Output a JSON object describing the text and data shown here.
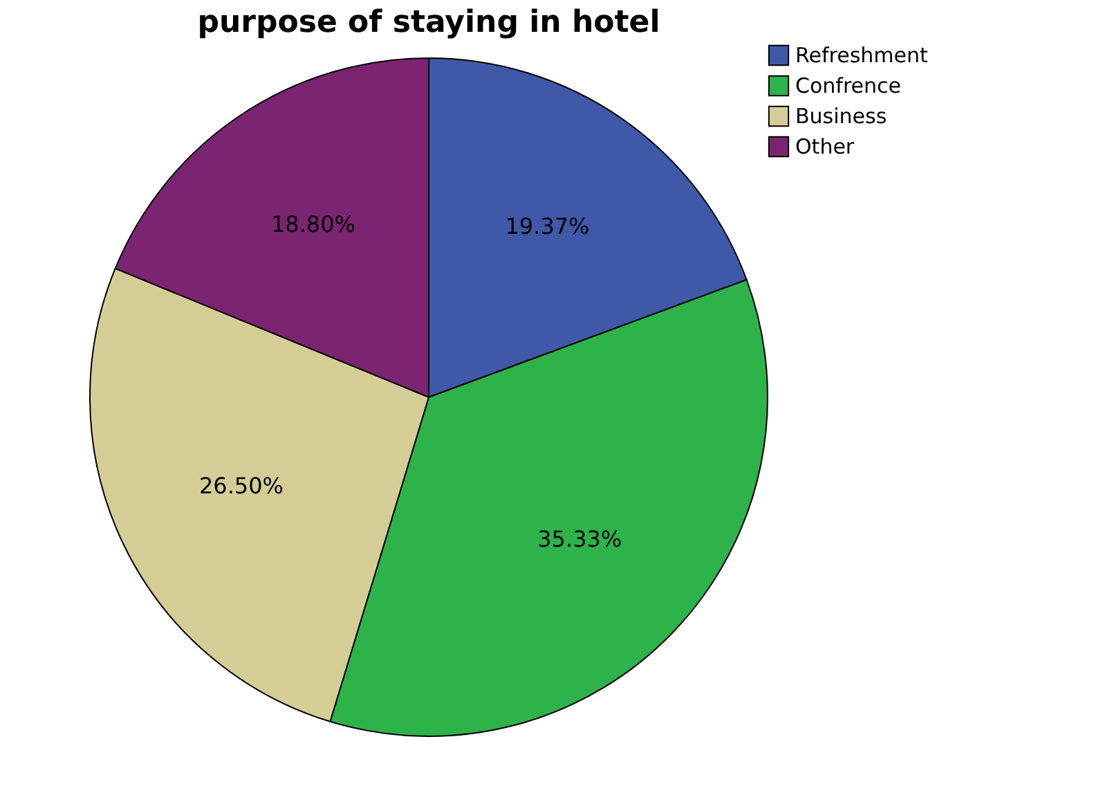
{
  "chart_data": {
    "type": "pie",
    "title": "purpose of staying in hotel",
    "categories": [
      "Refreshment",
      "Confrence",
      "Business",
      "Other"
    ],
    "values": [
      19.37,
      35.33,
      26.5,
      18.8
    ],
    "value_labels": [
      "19.37%",
      "35.33%",
      "26.50%",
      "18.80%"
    ],
    "colors": [
      "#3f58a8",
      "#2db34a",
      "#d5cd96",
      "#7b2572"
    ],
    "legend": "top right"
  }
}
